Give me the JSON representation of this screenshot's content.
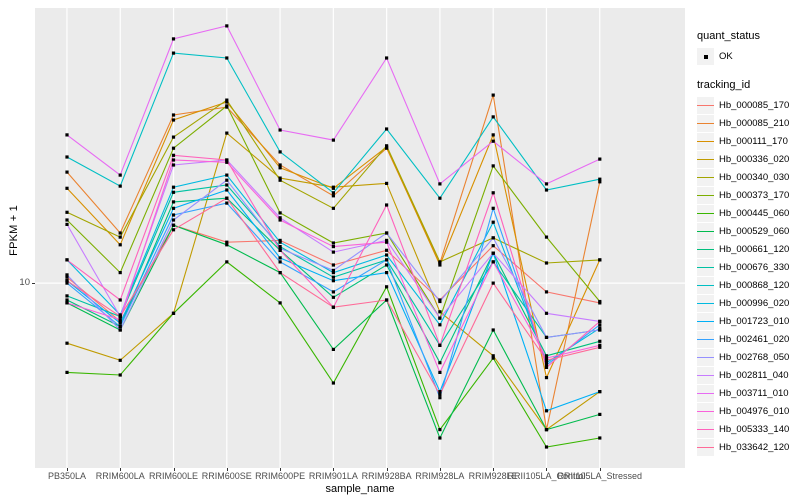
{
  "figure": {
    "y_tick_label": "10"
  },
  "legend": {
    "quant_status": {
      "title": "quant_status",
      "items": [
        {
          "label": "OK",
          "symbol": "point",
          "color": "#000000"
        }
      ]
    },
    "tracking_id": {
      "title": "tracking_id"
    }
  },
  "chart_data": {
    "type": "line",
    "title": "",
    "xlabel": "sample_name",
    "ylabel": "FPKM + 1",
    "grid": true,
    "legend_position": "right",
    "categories": [
      "PB350LA",
      "RRIM600LA",
      "RRIM600LE",
      "RRIM600SE",
      "RRIM600PE",
      "RRIM901LA",
      "RRIM928BA",
      "RRIM928LA",
      "RRIM928LE",
      "RRII105LA_Control",
      "RRII105LA_Stressed"
    ],
    "y_scale": {
      "type": "log10",
      "ticks": [
        10
      ],
      "range": [
        2.2,
        96
      ]
    },
    "quant_status": "OK",
    "style": {
      "panel_bg": "#EBEBEB",
      "grid_color": "#FFFFFF",
      "marker_color": "#000000",
      "axis_text_color": "#4D4D4D"
    },
    "series": [
      {
        "name": "Hb_000085_170",
        "color": "#F8766D",
        "values": [
          10.5,
          7.3,
          16.1,
          14.0,
          14.2,
          11.6,
          13.1,
          8.7,
          13.6,
          9.3,
          8.5
        ]
      },
      {
        "name": "Hb_000085_210",
        "color": "#EA8331",
        "values": [
          24.9,
          15.1,
          39.8,
          42.5,
          26.4,
          20.5,
          30.3,
          11.8,
          46.9,
          3.0,
          23.0
        ]
      },
      {
        "name": "Hb_000111_170",
        "color": "#D89000",
        "values": [
          21.8,
          13.7,
          38.2,
          44.3,
          25.8,
          21.8,
          30.6,
          11.6,
          33.8,
          4.6,
          12.1
        ]
      },
      {
        "name": "Hb_000336_020",
        "color": "#C09B00",
        "values": [
          6.1,
          5.3,
          7.8,
          34.3,
          23.7,
          22.0,
          22.7,
          7.9,
          5.5,
          3.0,
          4.1
        ]
      },
      {
        "name": "Hb_000340_030",
        "color": "#A3A500",
        "values": [
          17.9,
          14.6,
          33.2,
          45.0,
          23.3,
          18.5,
          30.9,
          11.9,
          14.5,
          11.8,
          12.1
        ]
      },
      {
        "name": "Hb_000373_170",
        "color": "#7CAE00",
        "values": [
          16.8,
          10.9,
          30.3,
          42.9,
          17.8,
          13.9,
          15.1,
          7.5,
          26.2,
          14.6,
          8.6
        ]
      },
      {
        "name": "Hb_000445_060",
        "color": "#39B600",
        "values": [
          4.8,
          4.7,
          7.8,
          11.9,
          8.5,
          4.4,
          9.7,
          3.0,
          5.4,
          2.6,
          2.8
        ]
      },
      {
        "name": "Hb_000529_060",
        "color": "#00BB4E",
        "values": [
          8.5,
          6.8,
          16.1,
          13.7,
          10.9,
          5.8,
          8.7,
          2.8,
          6.8,
          3.0,
          3.4
        ]
      },
      {
        "name": "Hb_000661_120",
        "color": "#00BF7D",
        "values": [
          8.7,
          7.0,
          19.5,
          20.1,
          13.1,
          8.9,
          11.6,
          5.2,
          12.8,
          5.5,
          6.2
        ]
      },
      {
        "name": "Hb_000676_330",
        "color": "#00C1A3",
        "values": [
          9.0,
          7.6,
          21.1,
          22.4,
          13.5,
          10.5,
          12.1,
          6.0,
          11.9,
          6.4,
          6.8
        ]
      },
      {
        "name": "Hb_000868_120",
        "color": "#00BFC4",
        "values": [
          28.2,
          22.2,
          66.2,
          63.6,
          29.4,
          21.0,
          35.5,
          20.1,
          39.2,
          21.5,
          23.5
        ]
      },
      {
        "name": "Hb_000996_020",
        "color": "#00BAE0",
        "values": [
          12.1,
          7.7,
          22.0,
          24.3,
          14.0,
          10.9,
          12.6,
          7.1,
          16.5,
          5.2,
          6.9
        ]
      },
      {
        "name": "Hb_001723_010",
        "color": "#00B0F6",
        "values": [
          10.2,
          7.2,
          18.5,
          21.5,
          12.3,
          10.2,
          10.9,
          4.1,
          12.8,
          3.5,
          4.1
        ]
      },
      {
        "name": "Hb_002461_020",
        "color": "#35A2FF",
        "values": [
          10.0,
          7.0,
          17.5,
          19.3,
          11.9,
          9.3,
          12.1,
          3.9,
          18.5,
          5.1,
          7.1
        ]
      },
      {
        "name": "Hb_002768_050",
        "color": "#9590FF",
        "values": [
          10.7,
          6.8,
          16.8,
          23.3,
          13.3,
          11.1,
          15.1,
          8.6,
          14.5,
          6.4,
          6.8
        ]
      },
      {
        "name": "Hb_002811_040",
        "color": "#C77CFF",
        "values": [
          16.2,
          7.6,
          26.4,
          27.5,
          17.1,
          12.9,
          14.2,
          7.5,
          12.8,
          7.8,
          7.3
        ]
      },
      {
        "name": "Hb_003711_010",
        "color": "#E76BF3",
        "values": [
          33.8,
          24.3,
          74.4,
          82.8,
          35.2,
          32.4,
          63.6,
          22.6,
          32.1,
          22.6,
          27.7
        ]
      },
      {
        "name": "Hb_004976_010",
        "color": "#FA62DB",
        "values": [
          8.5,
          7.4,
          27.5,
          27.0,
          16.8,
          13.5,
          14.0,
          4.8,
          11.9,
          5.4,
          6.0
        ]
      },
      {
        "name": "Hb_005333_140",
        "color": "#FF62BC",
        "values": [
          12.1,
          8.7,
          28.6,
          27.5,
          13.1,
          8.2,
          19.0,
          6.0,
          21.0,
          5.0,
          7.3
        ]
      },
      {
        "name": "Hb_033642_120",
        "color": "#FF6A98",
        "values": [
          10.2,
          7.6,
          15.5,
          20.1,
          10.9,
          8.2,
          8.7,
          4.0,
          10.0,
          5.3,
          5.9
        ]
      }
    ]
  }
}
